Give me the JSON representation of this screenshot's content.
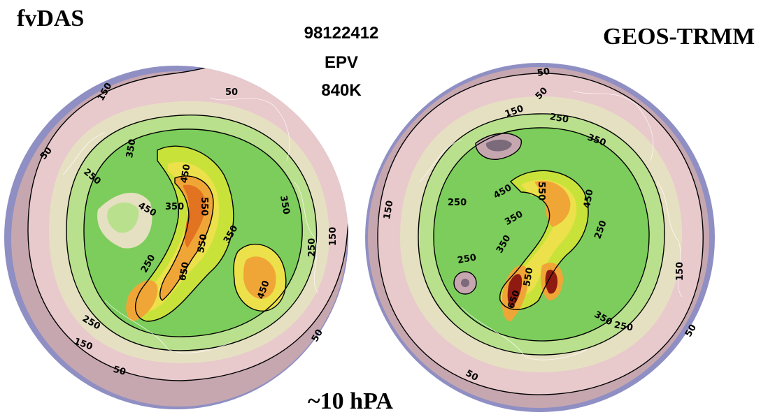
{
  "header": {
    "left_title": "fvDAS",
    "right_title": "GEOS-TRMM",
    "date": "98122412",
    "field": "EPV",
    "level": "840K"
  },
  "footer": {
    "pressure": "~10 hPA"
  },
  "colors": {
    "outer": "#c6a7b0",
    "pink": "#e8c9cc",
    "beige": "#e6e0c2",
    "light_green": "#b9e08d",
    "green": "#7ccd5b",
    "yellow_green": "#c9e23a",
    "yellow": "#ece14a",
    "orange": "#f0a636",
    "dark_orange": "#e27320",
    "dark_red": "#8e1a12",
    "rim": "#8f8fc4",
    "coast": "#ffffff"
  },
  "maps": [
    {
      "name": "fvDAS",
      "contour_labels": [
        "50",
        "150",
        "50",
        "250",
        "350",
        "450",
        "350",
        "550",
        "650",
        "550",
        "450",
        "350",
        "250",
        "150",
        "50",
        "250",
        "150",
        "50",
        "450",
        "350",
        "250"
      ]
    },
    {
      "name": "GEOS-TRMM",
      "contour_labels": [
        "50",
        "50",
        "150",
        "250",
        "350",
        "250",
        "450",
        "350",
        "550",
        "450",
        "350",
        "250",
        "150",
        "50",
        "250",
        "150",
        "50",
        "350",
        "550",
        "650",
        "250"
      ]
    }
  ]
}
